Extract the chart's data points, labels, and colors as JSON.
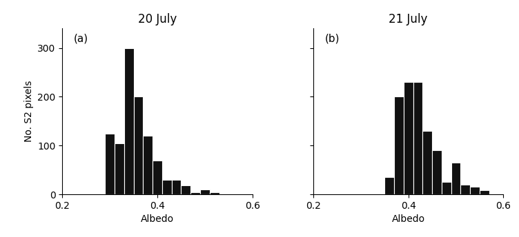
{
  "title_a": "20 July",
  "title_b": "21 July",
  "label_a": "(a)",
  "label_b": "(b)",
  "xlabel": "Albedo",
  "ylabel": "No. S2 pixels",
  "xlim": [
    0.2,
    0.6
  ],
  "ylim": [
    0,
    340
  ],
  "yticks": [
    0,
    100,
    200,
    300
  ],
  "xticks": [
    0.2,
    0.4,
    0.6
  ],
  "bin_width": 0.02,
  "bar_color": "#111111",
  "bar_edgecolor": "white",
  "bar_linewidth": 0.8,
  "hist_a": {
    "bin_centers": [
      0.3,
      0.32,
      0.34,
      0.36,
      0.38,
      0.4,
      0.42,
      0.44,
      0.46,
      0.48,
      0.5,
      0.52
    ],
    "counts": [
      125,
      105,
      300,
      200,
      120,
      70,
      30,
      30,
      18,
      5,
      10,
      5
    ]
  },
  "hist_b": {
    "bin_centers": [
      0.36,
      0.38,
      0.4,
      0.42,
      0.44,
      0.46,
      0.48,
      0.5,
      0.52,
      0.54,
      0.56
    ],
    "counts": [
      35,
      200,
      230,
      230,
      130,
      90,
      25,
      65,
      20,
      15,
      8
    ]
  },
  "background_color": "#ffffff",
  "title_fontsize": 12,
  "label_fontsize": 10,
  "tick_fontsize": 10,
  "annot_fontsize": 11,
  "fig_width": 7.52,
  "fig_height": 3.44,
  "dpi": 100
}
